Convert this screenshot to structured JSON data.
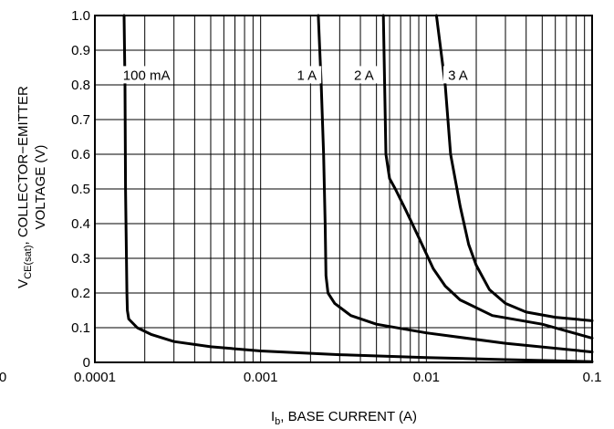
{
  "chart_data": {
    "type": "line",
    "x_scale": "log",
    "xlim": [
      0.0001,
      0.1
    ],
    "ylim": [
      0,
      1.0
    ],
    "grid": true,
    "xlabel": {
      "main": "I",
      "sub": "b",
      "rest": ", BASE CURRENT (A)"
    },
    "ylabel": {
      "line1": {
        "main": "V",
        "sub": "CE(sat)",
        "rest": ", COLLECTOR−EMITTER"
      },
      "line2": "VOLTAGE (V)"
    },
    "x_ticks": [
      {
        "value": 0.0001,
        "label": "0.0001"
      },
      {
        "value": 0.001,
        "label": "0.001"
      },
      {
        "value": 0.01,
        "label": "0.01"
      },
      {
        "value": 0.1,
        "label": "0.1"
      }
    ],
    "x_extra_label": "0",
    "y_ticks": [
      {
        "value": 0,
        "label": "0"
      },
      {
        "value": 0.1,
        "label": "0.1"
      },
      {
        "value": 0.2,
        "label": "0.2"
      },
      {
        "value": 0.3,
        "label": "0.3"
      },
      {
        "value": 0.4,
        "label": "0.4"
      },
      {
        "value": 0.5,
        "label": "0.5"
      },
      {
        "value": 0.6,
        "label": "0.6"
      },
      {
        "value": 0.7,
        "label": "0.7"
      },
      {
        "value": 0.8,
        "label": "0.8"
      },
      {
        "value": 0.9,
        "label": "0.9"
      },
      {
        "value": 1.0,
        "label": "1.0"
      }
    ],
    "series": [
      {
        "name": "100 mA",
        "label_at": [
          0.000205,
          0.82
        ],
        "points": [
          [
            0.00015,
            1.0
          ],
          [
            0.000152,
            0.8
          ],
          [
            0.000153,
            0.5
          ],
          [
            0.000155,
            0.3
          ],
          [
            0.000156,
            0.2
          ],
          [
            0.000157,
            0.15
          ],
          [
            0.00016,
            0.125
          ],
          [
            0.00018,
            0.1
          ],
          [
            0.00022,
            0.08
          ],
          [
            0.0003,
            0.06
          ],
          [
            0.0005,
            0.045
          ],
          [
            0.001,
            0.033
          ],
          [
            0.003,
            0.022
          ],
          [
            0.01,
            0.014
          ],
          [
            0.03,
            0.008
          ],
          [
            0.1,
            0.002
          ]
        ]
      },
      {
        "name": "1 A",
        "label_at": [
          0.0019,
          0.82
        ],
        "points": [
          [
            0.00223,
            1.0
          ],
          [
            0.00232,
            0.8
          ],
          [
            0.0024,
            0.6
          ],
          [
            0.00245,
            0.4
          ],
          [
            0.00248,
            0.25
          ],
          [
            0.00255,
            0.2
          ],
          [
            0.0028,
            0.17
          ],
          [
            0.0035,
            0.135
          ],
          [
            0.005,
            0.11
          ],
          [
            0.01,
            0.085
          ],
          [
            0.03,
            0.055
          ],
          [
            0.1,
            0.03
          ]
        ]
      },
      {
        "name": "2 A",
        "label_at": [
          0.0042,
          0.82
        ],
        "points": [
          [
            0.0055,
            1.0
          ],
          [
            0.0056,
            0.8
          ],
          [
            0.0057,
            0.6
          ],
          [
            0.006,
            0.53
          ],
          [
            0.0065,
            0.5
          ],
          [
            0.0075,
            0.44
          ],
          [
            0.009,
            0.36
          ],
          [
            0.011,
            0.27
          ],
          [
            0.013,
            0.22
          ],
          [
            0.016,
            0.18
          ],
          [
            0.025,
            0.135
          ],
          [
            0.05,
            0.11
          ],
          [
            0.1,
            0.07
          ]
        ]
      },
      {
        "name": "3 A",
        "label_at": [
          0.0155,
          0.82
        ],
        "points": [
          [
            0.0115,
            1.0
          ],
          [
            0.013,
            0.8
          ],
          [
            0.014,
            0.6
          ],
          [
            0.016,
            0.45
          ],
          [
            0.018,
            0.34
          ],
          [
            0.02,
            0.28
          ],
          [
            0.024,
            0.21
          ],
          [
            0.03,
            0.17
          ],
          [
            0.04,
            0.145
          ],
          [
            0.06,
            0.13
          ],
          [
            0.1,
            0.12
          ]
        ]
      }
    ]
  }
}
